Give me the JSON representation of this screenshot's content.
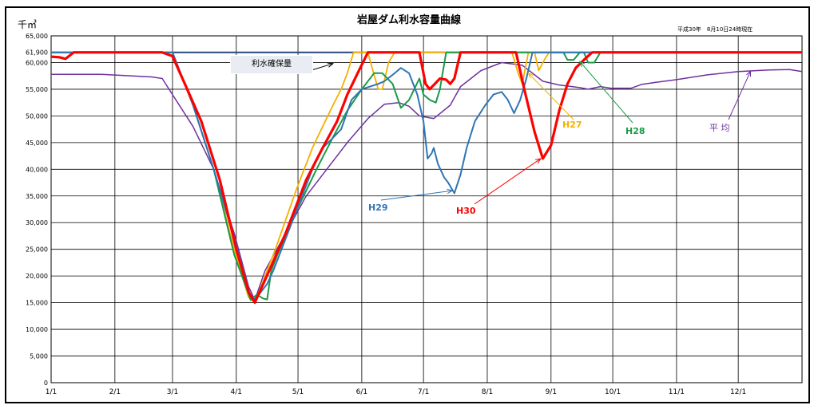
{
  "chart_data": {
    "type": "line",
    "title": "岩屋ダム利水容量曲線",
    "unit_label": "千㎥",
    "as_of": "平成30年　8月10日24時現在",
    "x_ticks": [
      "1/1",
      "2/1",
      "3/1",
      "4/1",
      "5/1",
      "6/1",
      "7/1",
      "8/1",
      "9/1",
      "10/1",
      "11/1",
      "12/1"
    ],
    "y_ticks": [
      "0",
      "5,000",
      "10,000",
      "15,000",
      "20,000",
      "25,000",
      "30,000",
      "35,000",
      "40,000",
      "45,000",
      "50,000",
      "55,000",
      "60,000",
      "65,000"
    ],
    "y_ticks_values": [
      0,
      5000,
      10000,
      15000,
      20000,
      25000,
      30000,
      35000,
      40000,
      45000,
      50000,
      55000,
      60000,
      65000
    ],
    "ref_tick": {
      "label": "61,900",
      "value": 61900
    },
    "ylim": [
      0,
      65000
    ],
    "xlim_day": [
      1,
      366
    ],
    "callout_label": "利水確保量",
    "series": [
      {
        "id": "kakuho",
        "color": "#1f3f7a",
        "points": [
          [
            1,
            61900
          ],
          [
            366,
            61900
          ]
        ]
      },
      {
        "id": "heikin",
        "name": "平 均",
        "color": "#7030a0",
        "points": [
          [
            1,
            57800
          ],
          [
            25,
            57800
          ],
          [
            50,
            57300
          ],
          [
            55,
            57000
          ],
          [
            60,
            54000
          ],
          [
            70,
            48000
          ],
          [
            80,
            40000
          ],
          [
            90,
            28000
          ],
          [
            97,
            18000
          ],
          [
            100,
            15500
          ],
          [
            105,
            21000
          ],
          [
            115,
            28000
          ],
          [
            125,
            35000
          ],
          [
            135,
            40000
          ],
          [
            145,
            45000
          ],
          [
            155,
            49500
          ],
          [
            163,
            52200
          ],
          [
            170,
            52500
          ],
          [
            175,
            51800
          ],
          [
            180,
            50000
          ],
          [
            187,
            49500
          ],
          [
            195,
            52000
          ],
          [
            200,
            55500
          ],
          [
            210,
            58500
          ],
          [
            220,
            60000
          ],
          [
            230,
            59500
          ],
          [
            240,
            56500
          ],
          [
            248,
            55800
          ],
          [
            258,
            55300
          ],
          [
            262,
            55000
          ],
          [
            268,
            55500
          ],
          [
            273,
            55200
          ],
          [
            283,
            55200
          ],
          [
            288,
            55900
          ],
          [
            295,
            56300
          ],
          [
            305,
            56800
          ],
          [
            320,
            57700
          ],
          [
            335,
            58300
          ],
          [
            350,
            58600
          ],
          [
            360,
            58700
          ],
          [
            366,
            58300
          ]
        ]
      },
      {
        "id": "h27",
        "name": "H27",
        "color": "#f5b000",
        "points": [
          [
            1,
            61900
          ],
          [
            60,
            61900
          ],
          [
            70,
            52000
          ],
          [
            80,
            40000
          ],
          [
            90,
            25000
          ],
          [
            97,
            16000
          ],
          [
            100,
            15000
          ],
          [
            110,
            25000
          ],
          [
            120,
            36000
          ],
          [
            128,
            44000
          ],
          [
            133,
            48000
          ],
          [
            138,
            52000
          ],
          [
            142,
            55000
          ],
          [
            145,
            58000
          ],
          [
            148,
            61900
          ],
          [
            155,
            61900
          ],
          [
            157,
            59000
          ],
          [
            160,
            55000
          ],
          [
            162,
            55000
          ],
          [
            165,
            60000
          ],
          [
            168,
            61900
          ],
          [
            225,
            61900
          ],
          [
            228,
            58000
          ],
          [
            230,
            56000
          ],
          [
            233,
            61900
          ],
          [
            236,
            61900
          ],
          [
            238,
            58500
          ],
          [
            240,
            60000
          ],
          [
            243,
            61900
          ],
          [
            366,
            61900
          ]
        ]
      },
      {
        "id": "h28",
        "name": "H28",
        "color": "#1a9b47",
        "points": [
          [
            1,
            61900
          ],
          [
            60,
            61900
          ],
          [
            70,
            52000
          ],
          [
            80,
            40000
          ],
          [
            90,
            24000
          ],
          [
            98,
            15500
          ],
          [
            101,
            16500
          ],
          [
            104,
            15800
          ],
          [
            106,
            15600
          ],
          [
            108,
            21000
          ],
          [
            111,
            24000
          ],
          [
            120,
            32000
          ],
          [
            130,
            40000
          ],
          [
            138,
            46000
          ],
          [
            145,
            51000
          ],
          [
            152,
            55000
          ],
          [
            158,
            58000
          ],
          [
            162,
            58000
          ],
          [
            167,
            56000
          ],
          [
            171,
            51500
          ],
          [
            175,
            53000
          ],
          [
            180,
            57000
          ],
          [
            182,
            54000
          ],
          [
            185,
            53000
          ],
          [
            188,
            52500
          ],
          [
            190,
            55000
          ],
          [
            193,
            61900
          ],
          [
            250,
            61900
          ],
          [
            252,
            60500
          ],
          [
            255,
            60500
          ],
          [
            258,
            61900
          ],
          [
            260,
            61900
          ],
          [
            262,
            60000
          ],
          [
            265,
            60000
          ],
          [
            268,
            61900
          ],
          [
            366,
            61900
          ]
        ]
      },
      {
        "id": "h29",
        "name": "H29",
        "color": "#2e75b6",
        "points": [
          [
            1,
            61900
          ],
          [
            60,
            61900
          ],
          [
            70,
            52000
          ],
          [
            80,
            40000
          ],
          [
            90,
            27000
          ],
          [
            98,
            16000
          ],
          [
            100,
            15500
          ],
          [
            103,
            17000
          ],
          [
            106,
            18500
          ],
          [
            109,
            21000
          ],
          [
            115,
            27000
          ],
          [
            122,
            34000
          ],
          [
            128,
            40000
          ],
          [
            133,
            44000
          ],
          [
            137,
            45500
          ],
          [
            142,
            47500
          ],
          [
            147,
            53000
          ],
          [
            152,
            55000
          ],
          [
            160,
            56000
          ],
          [
            163,
            56500
          ],
          [
            168,
            58000
          ],
          [
            171,
            59000
          ],
          [
            175,
            58000
          ],
          [
            179,
            54000
          ],
          [
            182,
            49000
          ],
          [
            184,
            42000
          ],
          [
            186,
            43000
          ],
          [
            187,
            44000
          ],
          [
            189,
            41000
          ],
          [
            192,
            38500
          ],
          [
            194,
            37500
          ],
          [
            197,
            35500
          ],
          [
            200,
            39000
          ],
          [
            203,
            44000
          ],
          [
            207,
            49000
          ],
          [
            212,
            52000
          ],
          [
            216,
            54000
          ],
          [
            220,
            54500
          ],
          [
            223,
            53000
          ],
          [
            226,
            50500
          ],
          [
            229,
            53000
          ],
          [
            232,
            57000
          ],
          [
            235,
            61900
          ],
          [
            366,
            61900
          ]
        ]
      },
      {
        "id": "h30",
        "name": "H30",
        "color": "#ff0000",
        "points": [
          [
            1,
            61100
          ],
          [
            5,
            61000
          ],
          [
            8,
            60700
          ],
          [
            12,
            61900
          ],
          [
            55,
            61900
          ],
          [
            60,
            61200
          ],
          [
            66,
            56000
          ],
          [
            74,
            49000
          ],
          [
            83,
            38000
          ],
          [
            91,
            25000
          ],
          [
            97,
            17000
          ],
          [
            100,
            15000
          ],
          [
            107,
            21000
          ],
          [
            115,
            28000
          ],
          [
            125,
            38000
          ],
          [
            133,
            44000
          ],
          [
            140,
            49000
          ],
          [
            145,
            54000
          ],
          [
            150,
            58000
          ],
          [
            155,
            61900
          ],
          [
            180,
            61900
          ],
          [
            183,
            56000
          ],
          [
            185,
            55000
          ],
          [
            187,
            55800
          ],
          [
            190,
            57000
          ],
          [
            193,
            56800
          ],
          [
            195,
            56000
          ],
          [
            197,
            57000
          ],
          [
            200,
            61900
          ],
          [
            227,
            61900
          ],
          [
            231,
            55000
          ],
          [
            236,
            47000
          ],
          [
            240,
            42000
          ],
          [
            244,
            44500
          ],
          [
            248,
            51000
          ],
          [
            252,
            56000
          ],
          [
            256,
            59000
          ],
          [
            260,
            60500
          ],
          [
            264,
            61900
          ],
          [
            366,
            61900
          ]
        ]
      }
    ],
    "annotations": [
      {
        "text": "H27",
        "series": "h27",
        "color": "#f5b000"
      },
      {
        "text": "H28",
        "series": "h28",
        "color": "#1a9b47"
      },
      {
        "text": "H29",
        "series": "h29",
        "color": "#2e75b6"
      },
      {
        "text": "H30",
        "series": "h30",
        "color": "#ff0000"
      },
      {
        "text": "平 均",
        "series": "heikin",
        "color": "#7030a0"
      }
    ]
  }
}
